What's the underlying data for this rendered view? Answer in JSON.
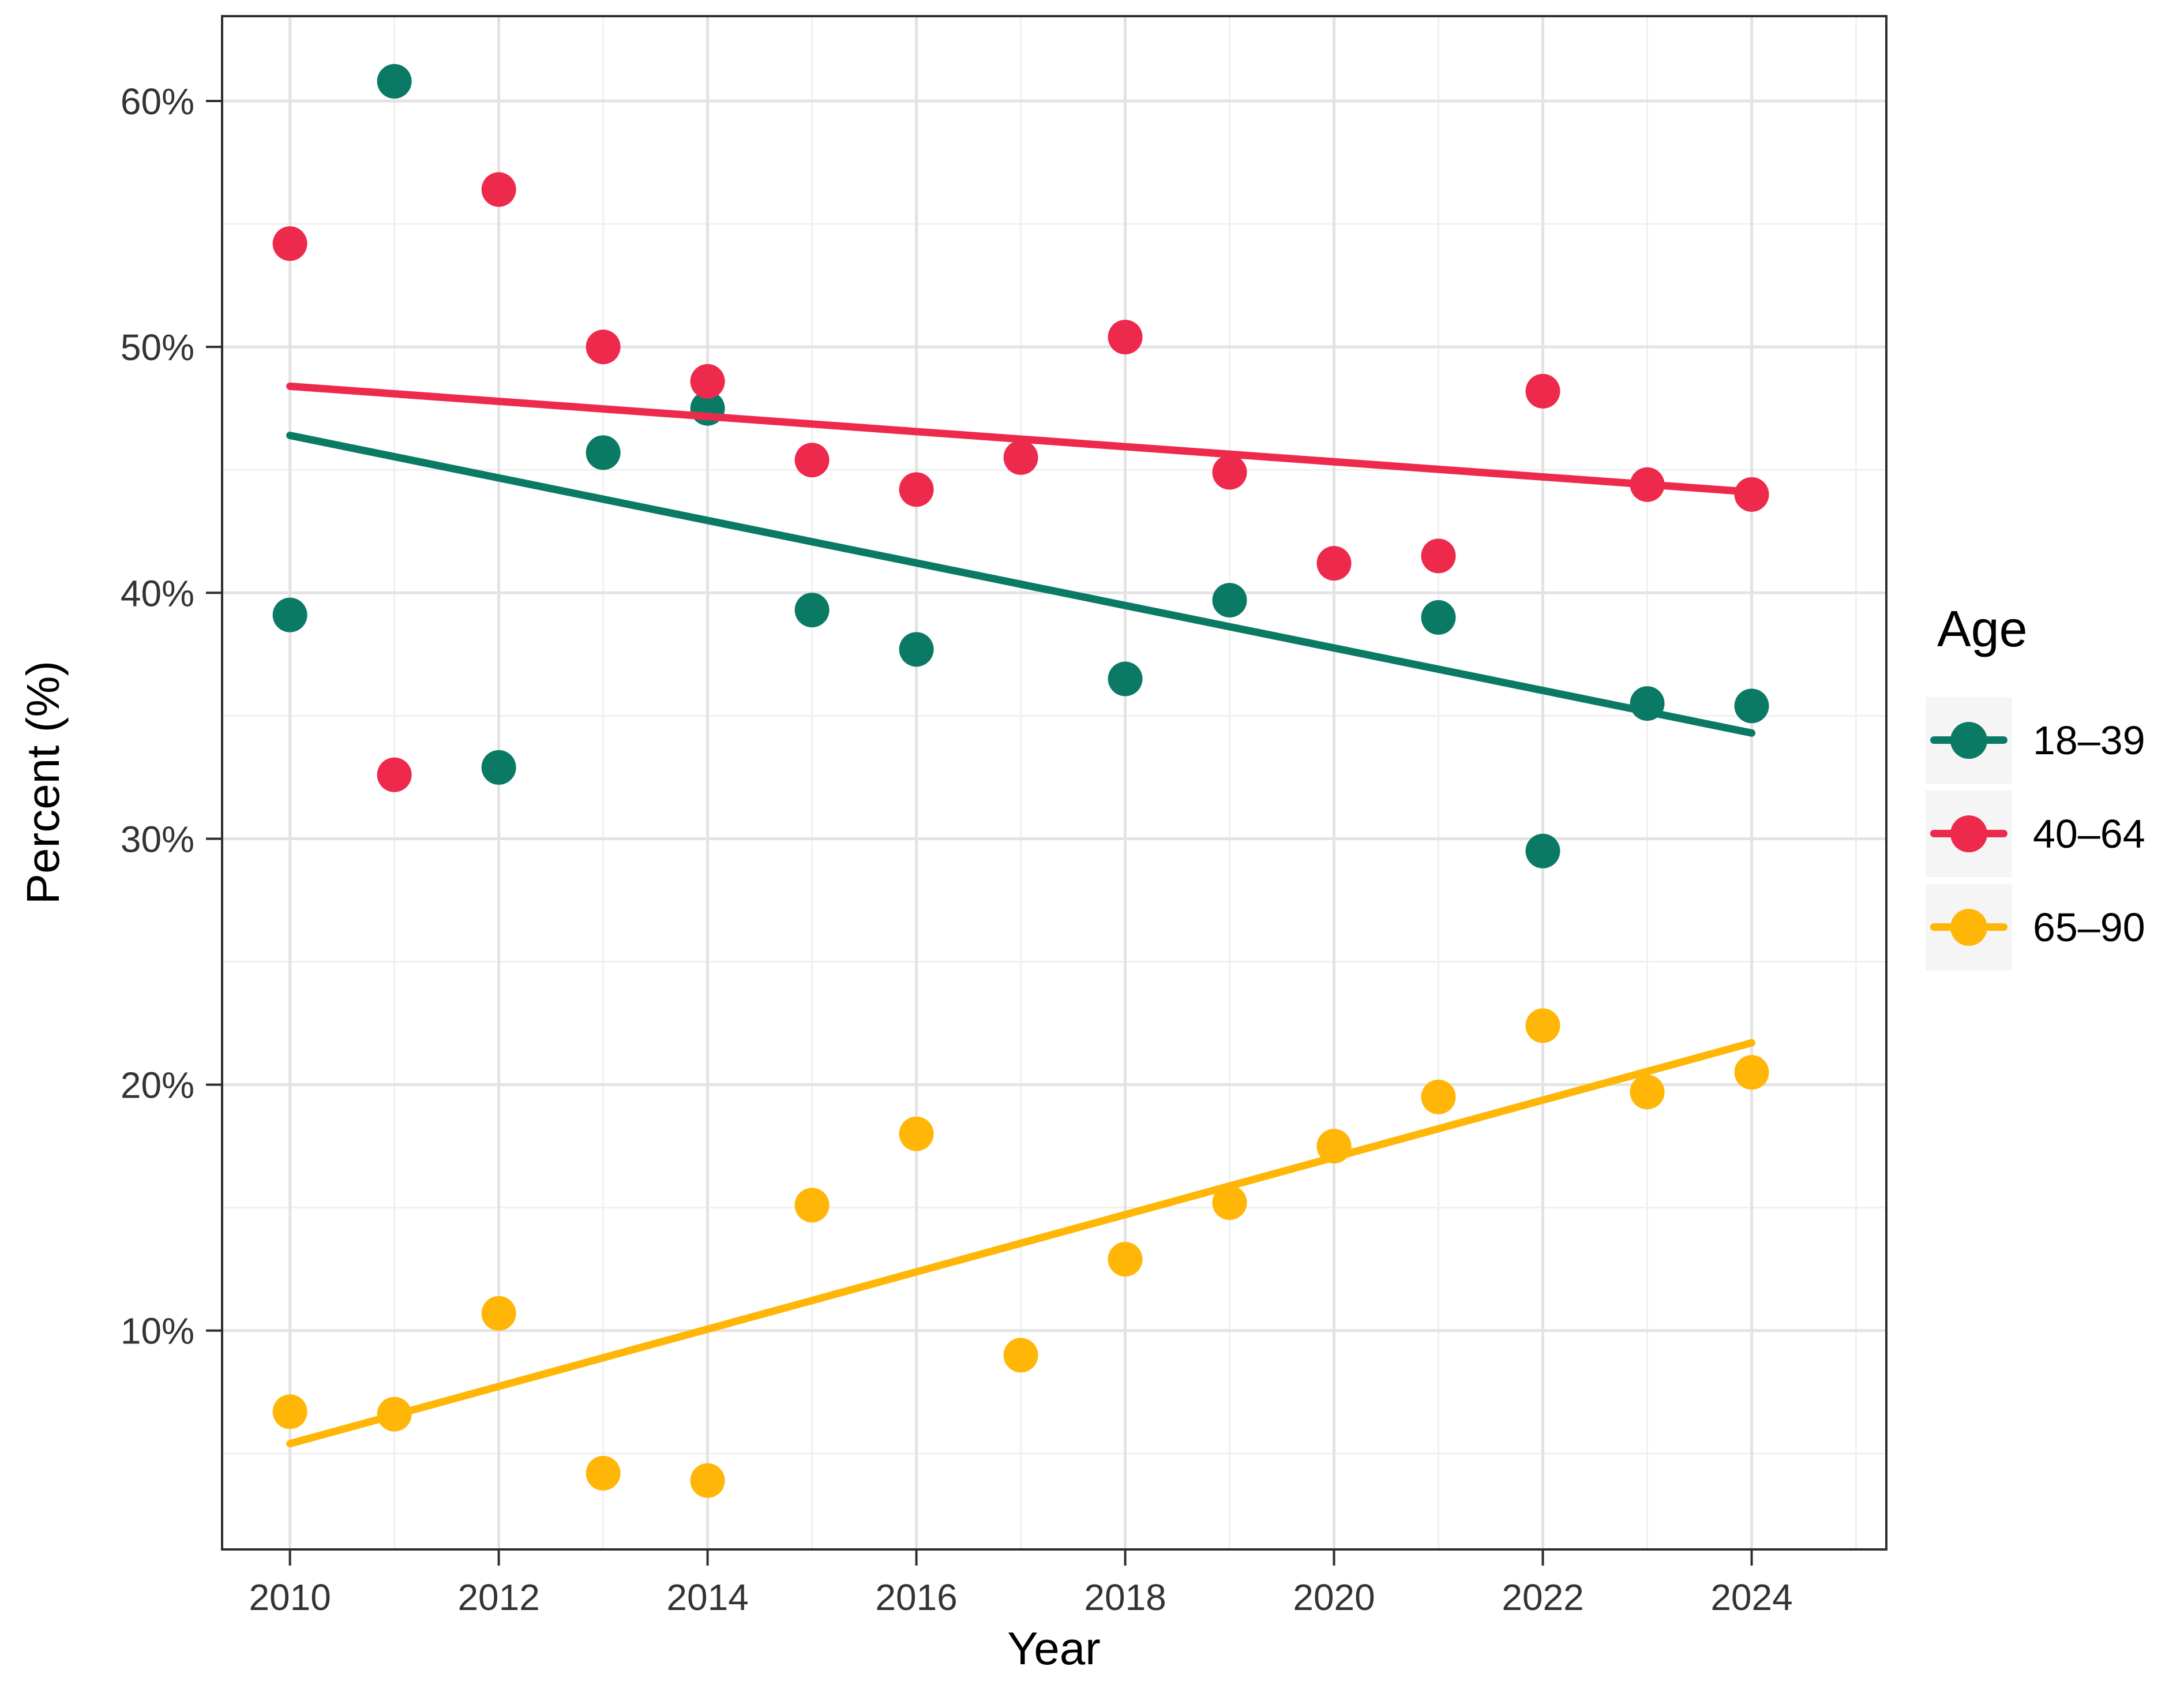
{
  "chart_data": {
    "type": "scatter",
    "title": "",
    "xlabel": "Year",
    "ylabel": "Percent (%)",
    "legend_title": "Age",
    "legend_position": "right",
    "grid": "on",
    "xlim": [
      2009.35,
      2025.29
    ],
    "ylim": [
      1.1,
      63.45
    ],
    "x_ticks": [
      {
        "value": 2010,
        "label": "2010"
      },
      {
        "value": 2012,
        "label": "2012"
      },
      {
        "value": 2014,
        "label": "2014"
      },
      {
        "value": 2016,
        "label": "2016"
      },
      {
        "value": 2018,
        "label": "2018"
      },
      {
        "value": 2020,
        "label": "2020"
      },
      {
        "value": 2022,
        "label": "2022"
      },
      {
        "value": 2024,
        "label": "2024"
      }
    ],
    "y_ticks": [
      {
        "value": 60,
        "label": "60%"
      },
      {
        "value": 50,
        "label": "50%"
      },
      {
        "value": 40,
        "label": "40%"
      },
      {
        "value": 30,
        "label": "30%"
      },
      {
        "value": 20,
        "label": "20%"
      },
      {
        "value": 10,
        "label": "10%"
      }
    ],
    "x_minor_gridlines": [
      2011,
      2013,
      2015,
      2017,
      2019,
      2021,
      2023,
      2025
    ],
    "y_minor_gridlines": [
      5,
      15,
      25,
      35,
      45,
      55
    ],
    "series": [
      {
        "name": "18–39",
        "color": "#0B7A64",
        "points": [
          [
            2010,
            39.1
          ],
          [
            2011,
            60.8
          ],
          [
            2012,
            32.9
          ],
          [
            2013,
            45.7
          ],
          [
            2014,
            47.5
          ],
          [
            2015,
            39.3
          ],
          [
            2016,
            37.7
          ],
          [
            2018,
            36.5
          ],
          [
            2019,
            39.7
          ],
          [
            2021,
            39.0
          ],
          [
            2022,
            29.5
          ],
          [
            2023,
            35.5
          ],
          [
            2024,
            35.4
          ]
        ],
        "trend": {
          "x1": 2010,
          "y1": 46.4,
          "x2": 2024,
          "y2": 34.3
        }
      },
      {
        "name": "40–64",
        "color": "#EE2A4C",
        "points": [
          [
            2010,
            54.2
          ],
          [
            2011,
            32.6
          ],
          [
            2012,
            56.4
          ],
          [
            2013,
            50.0
          ],
          [
            2014,
            48.6
          ],
          [
            2015,
            45.4
          ],
          [
            2016,
            44.2
          ],
          [
            2017,
            45.5
          ],
          [
            2018,
            50.4
          ],
          [
            2019,
            44.9
          ],
          [
            2020,
            41.2
          ],
          [
            2021,
            41.5
          ],
          [
            2022,
            48.2
          ],
          [
            2023,
            44.4
          ],
          [
            2024,
            44.0
          ]
        ],
        "trend": {
          "x1": 2010,
          "y1": 48.4,
          "x2": 2024,
          "y2": 44.1
        }
      },
      {
        "name": "65–90",
        "color": "#FFB607",
        "points": [
          [
            2010,
            6.7
          ],
          [
            2011,
            6.6
          ],
          [
            2012,
            10.7
          ],
          [
            2013,
            4.2
          ],
          [
            2014,
            3.9
          ],
          [
            2015,
            15.1
          ],
          [
            2016,
            18.0
          ],
          [
            2017,
            9.0
          ],
          [
            2018,
            12.9
          ],
          [
            2019,
            15.2
          ],
          [
            2020,
            17.5
          ],
          [
            2021,
            19.5
          ],
          [
            2022,
            22.4
          ],
          [
            2023,
            19.7
          ],
          [
            2024,
            20.5
          ]
        ],
        "trend": {
          "x1": 2010,
          "y1": 5.4,
          "x2": 2024,
          "y2": 21.7
        }
      }
    ],
    "style": {
      "panel_background": "#FFFFFF",
      "major_gridline_color": "#E3E3E3",
      "minor_gridline_color": "#F0F0F0",
      "panel_border_color": "#2E2E2E",
      "tick_color": "#2E2E2E",
      "tick_label_color": "#333333",
      "point_radius": 30,
      "trend_width": 13
    }
  }
}
